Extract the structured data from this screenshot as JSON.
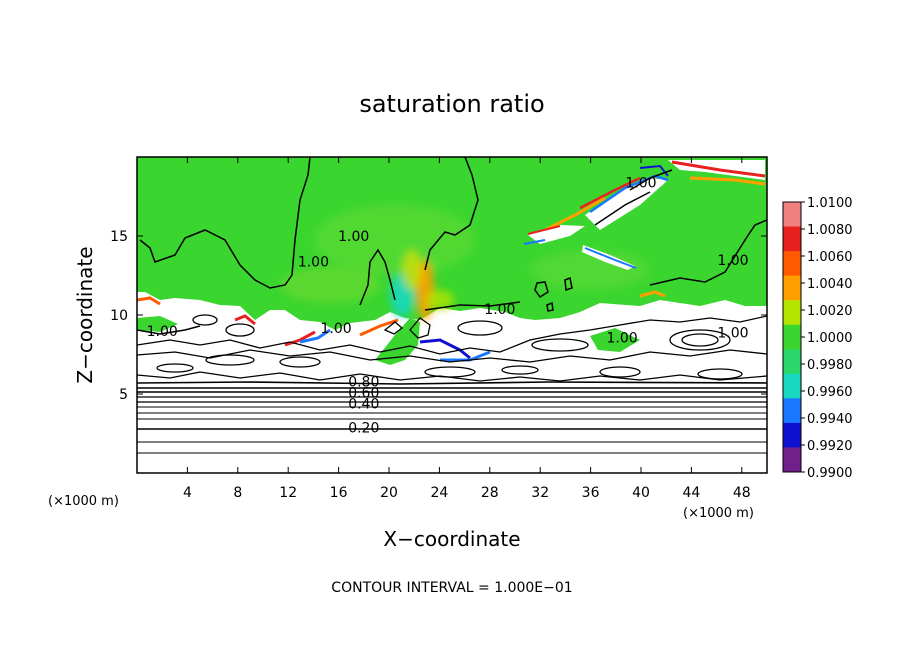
{
  "chart_data": {
    "type": "heatmap",
    "title": "saturation ratio",
    "xlabel": "X−coordinate",
    "ylabel": "Z−coordinate",
    "x_unit_left": "(×1000 m)",
    "x_unit_right": "(×1000 m)",
    "footnote": "CONTOUR INTERVAL = 1.000E−01",
    "xlim": [
      0,
      50
    ],
    "ylim": [
      0,
      20
    ],
    "x_ticks": [
      4,
      8,
      12,
      16,
      20,
      24,
      28,
      32,
      36,
      40,
      44,
      48
    ],
    "x_tick_labels": [
      "4",
      "8",
      "12",
      "16",
      "20",
      "24",
      "28",
      "32",
      "36",
      "40",
      "44",
      "48"
    ],
    "y_ticks": [
      5,
      10,
      15
    ],
    "y_tick_labels": [
      "5",
      "10",
      "15"
    ],
    "colorbar": {
      "labels": [
        "1.0100",
        "1.0080",
        "1.0060",
        "1.0040",
        "1.0020",
        "1.0000",
        "0.9980",
        "0.9960",
        "0.9940",
        "0.9920",
        "0.9900"
      ],
      "colors": [
        "#f08080",
        "#e82020",
        "#ff5a00",
        "#ffa000",
        "#b4e400",
        "#3ad52e",
        "#2ad56a",
        "#18d8c0",
        "#1878ff",
        "#1010d0",
        "#70208a"
      ]
    },
    "contour_labels": [
      {
        "text": "1.00",
        "x": 17.2,
        "y": 14.8
      },
      {
        "text": "1.00",
        "x": 14.0,
        "y": 13.2
      },
      {
        "text": "1.00",
        "x": 40.0,
        "y": 18.2
      },
      {
        "text": "1.00",
        "x": 47.3,
        "y": 13.3
      },
      {
        "text": "1.00",
        "x": 28.8,
        "y": 10.2
      },
      {
        "text": "1.00",
        "x": 2.0,
        "y": 8.8
      },
      {
        "text": "1.00",
        "x": 38.5,
        "y": 8.4
      },
      {
        "text": "1.00",
        "x": 47.3,
        "y": 8.7
      },
      {
        "text": "1.00",
        "x": 15.8,
        "y": 9.0
      },
      {
        "text": "0.80",
        "x": 18.0,
        "y": 5.6
      },
      {
        "text": "0.60",
        "x": 18.0,
        "y": 4.9
      },
      {
        "text": "0.40",
        "x": 18.0,
        "y": 4.2
      },
      {
        "text": "0.20",
        "x": 18.0,
        "y": 2.7
      }
    ]
  }
}
